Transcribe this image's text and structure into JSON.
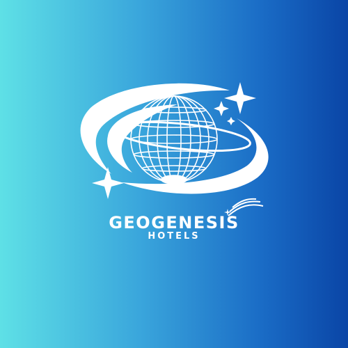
{
  "logo": {
    "brand_name": "GEOGENESIS",
    "tagline": "HOTELS",
    "icon": "globe-with-orbit-icon"
  },
  "colors": {
    "gradient_left": "#5ee0e6",
    "gradient_right": "#0a45a6",
    "foreground": "#ffffff"
  }
}
